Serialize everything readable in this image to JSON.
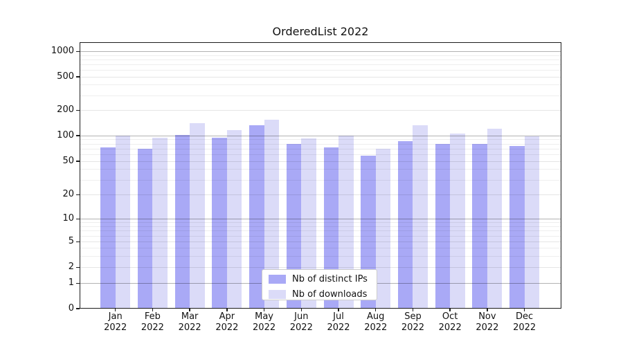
{
  "chart_data": {
    "type": "bar",
    "title": "OrderedList 2022",
    "categories": [
      "Jan 2022",
      "Feb 2022",
      "Mar 2022",
      "Apr 2022",
      "May 2022",
      "Jun 2022",
      "Jul 2022",
      "Aug 2022",
      "Sep 2022",
      "Oct 2022",
      "Nov 2022",
      "Dec 2022"
    ],
    "series": [
      {
        "name": "Nb of distinct IPs",
        "color": "#a9a9f6",
        "values": [
          72,
          70,
          102,
          94,
          133,
          80,
          73,
          58,
          85,
          80,
          80,
          75
        ]
      },
      {
        "name": "Nb of downloads",
        "color": "#dbdbf8",
        "values": [
          100,
          94,
          140,
          116,
          155,
          92,
          100,
          70,
          133,
          106,
          120,
          98
        ]
      }
    ],
    "yscale": "symlog",
    "ylim": [
      0,
      1300
    ],
    "yticks": [
      1000,
      500,
      200,
      100,
      50,
      20,
      10,
      5,
      2,
      1,
      0
    ],
    "ytick_labels": [
      "1000",
      "500",
      "200",
      "100",
      "50",
      "20",
      "10",
      "5",
      "2",
      "1",
      "0"
    ],
    "xlabel": "",
    "ylabel": "",
    "grid": true,
    "legend": {
      "position": "lower center",
      "entries": [
        "Nb of distinct IPs",
        "Nb of downloads"
      ]
    }
  }
}
